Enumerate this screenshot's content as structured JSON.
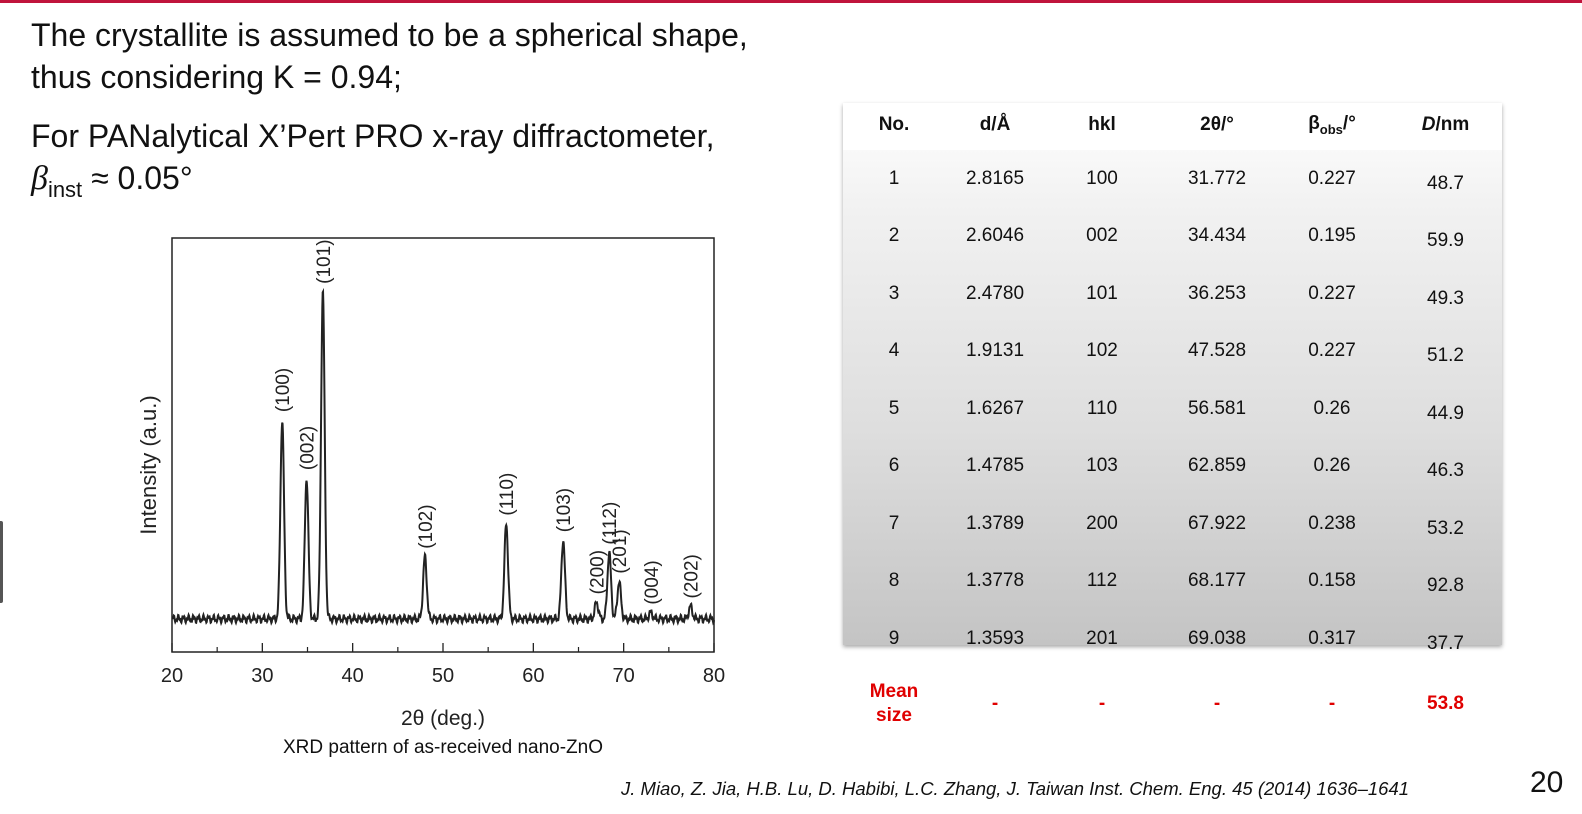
{
  "intro": {
    "line1": "The crystallite is assumed to be a spherical shape,",
    "line2": "thus considering K = 0.94;",
    "line3": "For PANalytical X’Pert PRO x-ray diffractometer,",
    "beta_symbol": "β",
    "beta_sub": "inst",
    "beta_rest": " ≈ 0.05°"
  },
  "chart_data": {
    "type": "line",
    "caption": "XRD pattern of as-received nano-ZnO",
    "xlabel": "2θ (deg.)",
    "ylabel": "Intensity (a.u.)",
    "xlim": [
      20,
      80
    ],
    "ylim": [
      0,
      100
    ],
    "xticks": [
      20,
      30,
      40,
      50,
      60,
      70,
      80
    ],
    "minor_xticks": [
      25,
      35,
      45,
      55,
      65,
      75
    ],
    "grid": false,
    "baseline": 8,
    "series": [
      {
        "peaks": [
          {
            "label": "(100)",
            "x": 32.2,
            "y": 56
          },
          {
            "label": "(002)",
            "x": 34.9,
            "y": 42
          },
          {
            "label": "(101)",
            "x": 36.7,
            "y": 87
          },
          {
            "label": "(102)",
            "x": 48.0,
            "y": 23
          },
          {
            "label": "(110)",
            "x": 57.0,
            "y": 31
          },
          {
            "label": "(103)",
            "x": 63.3,
            "y": 27
          },
          {
            "label": "(200)",
            "x": 67.0,
            "y": 12
          },
          {
            "label": "(112)",
            "x": 68.4,
            "y": 24
          },
          {
            "label": "(201)",
            "x": 69.5,
            "y": 17
          },
          {
            "label": "(004)",
            "x": 73.0,
            "y": 9.5
          },
          {
            "label": "(202)",
            "x": 77.4,
            "y": 11
          }
        ]
      }
    ]
  },
  "table": {
    "headers": [
      "No.",
      "d/Å",
      "hkl",
      "2θ/°",
      "β",
      "obs",
      "/°",
      "D",
      "/nm"
    ],
    "rows": [
      [
        "1",
        "2.8165",
        "100",
        "31.772",
        "0.227",
        "48.7"
      ],
      [
        "2",
        "2.6046",
        "002",
        "34.434",
        "0.195",
        "59.9"
      ],
      [
        "3",
        "2.4780",
        "101",
        "36.253",
        "0.227",
        "49.3"
      ],
      [
        "4",
        "1.9131",
        "102",
        "47.528",
        "0.227",
        "51.2"
      ],
      [
        "5",
        "1.6267",
        "110",
        "56.581",
        "0.26",
        "44.9"
      ],
      [
        "6",
        "1.4785",
        "103",
        "62.859",
        "0.26",
        "46.3"
      ],
      [
        "7",
        "1.3789",
        "200",
        "67.922",
        "0.238",
        "53.2"
      ],
      [
        "8",
        "1.3778",
        "112",
        "68.177",
        "0.158",
        "92.8"
      ],
      [
        "9",
        "1.3593",
        "201",
        "69.038",
        "0.317",
        "37.7"
      ]
    ],
    "mean_row": [
      "Mean",
      "size",
      "-",
      "-",
      "-",
      "-",
      "53.8"
    ]
  },
  "footer": {
    "citation": "J. Miao, Z. Jia, H.B. Lu, D. Habibi, L.C. Zhang, J. Taiwan Inst. Chem. Eng. 45 (2014) 1636–1641",
    "page_number": "20"
  },
  "colors": {
    "accent": "#c0143c",
    "highlight": "#e00000",
    "plot": "#222222"
  }
}
